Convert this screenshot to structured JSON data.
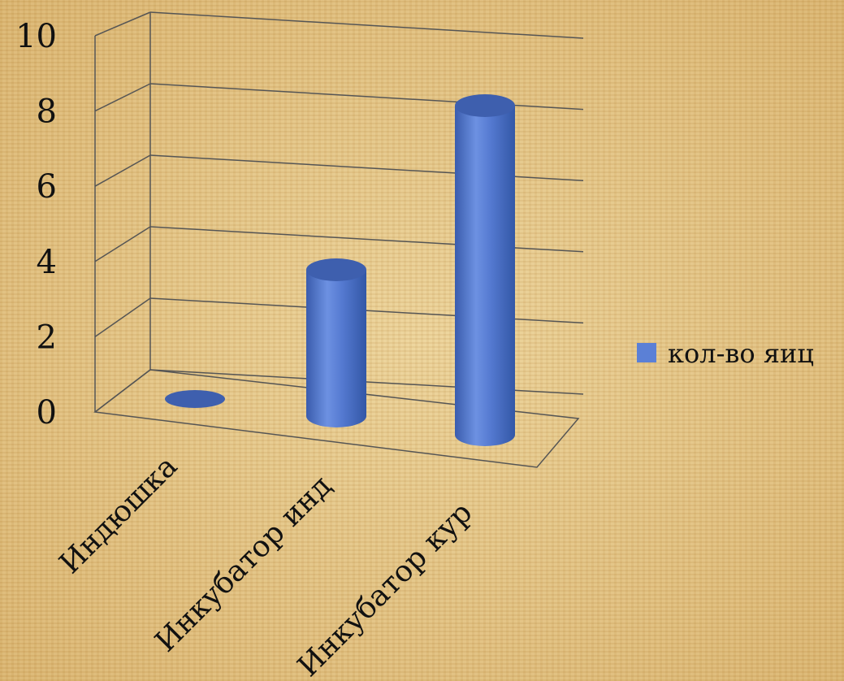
{
  "chart_data": {
    "type": "bar",
    "categories": [
      "Индюшка",
      "Инкубатор инд",
      "Инкубатор кур"
    ],
    "series": [
      {
        "name": "кол-во яиц",
        "values": [
          0,
          4,
          9
        ]
      }
    ],
    "ylim": [
      0,
      10
    ],
    "yticks": [
      0,
      2,
      4,
      6,
      8,
      10
    ],
    "grid": true,
    "legend_position": "right",
    "colors": {
      "bar": "#4f74cc",
      "bar_top": "#3e5fae",
      "grid": "#555555",
      "legend_swatch": "#5b80d6"
    }
  }
}
